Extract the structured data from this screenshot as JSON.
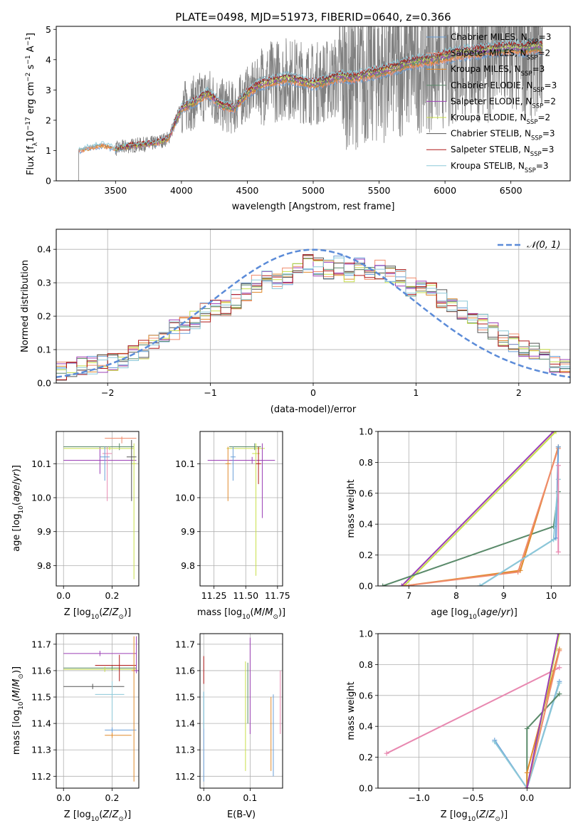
{
  "figure_title": "PLATE=0498, MJD=51973, FIBERID=0640, z=0.366",
  "colors": {
    "chabrier_miles": "#6a9fd8",
    "salpeter_miles": "#ef8b6c",
    "kroupa_miles": "#e08a2c",
    "chabrier_elodie": "#5a8a6a",
    "salpeter_elodie": "#9b3fb5",
    "kroupa_elodie": "#c8df4a",
    "chabrier_stelib": "#555555",
    "salpeter_stelib": "#b01818",
    "kroupa_stelib": "#8cc8d8",
    "observed": "#808080",
    "pink_extra": "#e888b0",
    "gaussian": "#5b8bd8",
    "grid": "#b0b0b0"
  },
  "legend_spectrum": [
    {
      "base": "Chabrier MILES, N",
      "sub": "SSP",
      "tail": "=3",
      "color": "#6a9fd8"
    },
    {
      "base": "Salpeter MILES, N",
      "sub": "SSP",
      "tail": "=2",
      "color": "#ef8b6c"
    },
    {
      "base": "Kroupa MILES, N",
      "sub": "SSP",
      "tail": "=3",
      "color": "#e08a2c"
    },
    {
      "base": "Chabrier ELODIE, N",
      "sub": "SSP",
      "tail": "=3",
      "color": "#5a8a6a"
    },
    {
      "base": "Salpeter ELODIE, N",
      "sub": "SSP",
      "tail": "=2",
      "color": "#9b3fb5"
    },
    {
      "base": "Kroupa ELODIE, N",
      "sub": "SSP",
      "tail": "=2",
      "color": "#c8df4a"
    },
    {
      "base": "Chabrier STELIB, N",
      "sub": "SSP",
      "tail": "=3",
      "color": "#555555"
    },
    {
      "base": "Salpeter STELIB, N",
      "sub": "SSP",
      "tail": "=3",
      "color": "#b01818"
    },
    {
      "base": "Kroupa STELIB, N",
      "sub": "SSP",
      "tail": "=3",
      "color": "#8cc8d8"
    }
  ],
  "legend_residual": {
    "label": "𝒩(0, 1)",
    "color": "#5b8bd8"
  },
  "chart_data": [
    {
      "type": "line",
      "xlabel": "wavelength [Angstrom, rest frame]",
      "ylabel": "Flux [fλ10⁻¹⁷ erg cm⁻² s⁻¹ A⁻¹]",
      "xlim": [
        3050,
        6950
      ],
      "ylim": [
        0,
        5.1
      ],
      "xticks": [
        3500,
        4000,
        4500,
        5000,
        5500,
        6000,
        6500
      ],
      "yticks": [
        0,
        1,
        2,
        3,
        4,
        5
      ],
      "model_continuum": {
        "x": [
          3220,
          3300,
          3400,
          3500,
          3600,
          3700,
          3800,
          3900,
          4000,
          4100,
          4200,
          4300,
          4400,
          4500,
          4600,
          4700,
          4800,
          4900,
          5000,
          5100,
          5200,
          5300,
          5400,
          5500,
          5600,
          5700,
          5800,
          5900,
          6000,
          6100,
          6200,
          6300,
          6400,
          6500,
          6600,
          6700,
          6740
        ],
        "y": [
          1.0,
          1.1,
          1.2,
          1.05,
          1.15,
          1.2,
          1.25,
          1.4,
          2.4,
          2.6,
          2.9,
          2.5,
          2.4,
          2.9,
          3.2,
          3.3,
          3.4,
          3.3,
          3.2,
          3.3,
          3.45,
          3.4,
          3.5,
          3.6,
          3.7,
          3.85,
          3.95,
          4.0,
          4.1,
          4.2,
          4.25,
          4.3,
          4.35,
          4.4,
          4.35,
          4.45,
          4.4
        ]
      },
      "observed_range": [
        3220,
        6740
      ]
    },
    {
      "type": "line",
      "xlabel": "(data-model)/error",
      "ylabel": "Normed distribution",
      "xlim": [
        -2.5,
        2.5
      ],
      "ylim": [
        0,
        0.46
      ],
      "xticks": [
        -2,
        -1,
        0,
        1,
        2
      ],
      "yticks": [
        0.0,
        0.1,
        0.2,
        0.3,
        0.4
      ],
      "histogram_bins": 50,
      "histogram_mean": [
        0.035,
        0.04,
        0.05,
        0.055,
        0.06,
        0.065,
        0.07,
        0.09,
        0.1,
        0.12,
        0.14,
        0.16,
        0.17,
        0.19,
        0.21,
        0.22,
        0.23,
        0.25,
        0.27,
        0.3,
        0.31,
        0.3,
        0.32,
        0.34,
        0.36,
        0.35,
        0.34,
        0.35,
        0.33,
        0.35,
        0.34,
        0.34,
        0.33,
        0.31,
        0.29,
        0.28,
        0.27,
        0.25,
        0.24,
        0.22,
        0.2,
        0.18,
        0.16,
        0.14,
        0.12,
        0.1,
        0.09,
        0.08,
        0.06,
        0.05
      ],
      "gaussian": {
        "mu": 0,
        "sigma": 1
      }
    },
    {
      "type": "scatter",
      "xlabel": "Z [log10(Z/Z⊙)]",
      "ylabel": "age [log10(age/yr)]",
      "xlim": [
        -0.03,
        0.31
      ],
      "ylim": [
        9.74,
        10.195
      ],
      "xticks": [
        0.0,
        0.2
      ],
      "yticks": [
        9.8,
        9.9,
        10.0,
        10.1
      ],
      "points": [
        {
          "x": 0.15,
          "y": 10.11,
          "xerr": [
            0.15,
            0.15
          ],
          "yerr": [
            0.04,
            0.04
          ],
          "color": "#9b3fb5"
        },
        {
          "x": 0.23,
          "y": 10.15,
          "xerr": [
            0.23,
            0.06
          ],
          "yerr": [
            0.01,
            0.01
          ],
          "color": "#5a8a6a"
        },
        {
          "x": 0.19,
          "y": 10.145,
          "xerr": [
            0.19,
            0.1
          ],
          "yerr": [
            0.005,
            0.005
          ],
          "color": "#c8df4a"
        },
        {
          "x": 0.24,
          "y": 10.175,
          "xerr": [
            0.07,
            0.06
          ],
          "yerr": [
            0.015,
            0.005
          ],
          "color": "#ef8b6c"
        },
        {
          "x": 0.29,
          "y": 10.1,
          "xerr": [
            0.01,
            0.01
          ],
          "yerr": [
            0.34,
            0.06
          ],
          "color": "#c8df4a"
        },
        {
          "x": 0.28,
          "y": 10.12,
          "xerr": [
            0.02,
            0.02
          ],
          "yerr": [
            0.13,
            0.05
          ],
          "color": "#555555"
        },
        {
          "x": 0.18,
          "y": 10.13,
          "xerr": [
            0.02,
            0.02
          ],
          "yerr": [
            0.14,
            0.02
          ],
          "color": "#e888b0"
        },
        {
          "x": 0.17,
          "y": 10.12,
          "xerr": [
            0.02,
            0.02
          ],
          "yerr": [
            0.07,
            0.03
          ],
          "color": "#6a9fd8"
        }
      ]
    },
    {
      "type": "scatter",
      "xlabel": "mass [log10(M/M⊙)]",
      "ylabel": "",
      "xlim": [
        11.14,
        11.79
      ],
      "ylim": [
        9.74,
        10.195
      ],
      "xticks": [
        11.25,
        11.5,
        11.75
      ],
      "yticks": [
        9.8,
        9.9,
        10.0,
        10.1
      ],
      "points": [
        {
          "x": 11.55,
          "y": 10.11,
          "xerr": [
            0.35,
            0.18
          ],
          "yerr": [
            0.01,
            0.01
          ],
          "color": "#9b3fb5"
        },
        {
          "x": 11.6,
          "y": 10.145,
          "xerr": [
            0.25,
            0.05
          ],
          "yerr": [
            0.005,
            0.005
          ],
          "color": "#c8df4a"
        },
        {
          "x": 11.57,
          "y": 10.15,
          "xerr": [
            0.2,
            0.05
          ],
          "yerr": [
            0.01,
            0.01
          ],
          "color": "#5a8a6a"
        },
        {
          "x": 11.63,
          "y": 10.11,
          "xerr": [
            0.05,
            0.02
          ],
          "yerr": [
            0.17,
            0.05
          ],
          "color": "#9b3fb5"
        },
        {
          "x": 11.58,
          "y": 10.13,
          "xerr": [
            0.03,
            0.03
          ],
          "yerr": [
            0.36,
            0.03
          ],
          "color": "#c8df4a"
        },
        {
          "x": 11.36,
          "y": 10.1,
          "xerr": [
            0.02,
            0.02
          ],
          "yerr": [
            0.11,
            0.05
          ],
          "color": "#e08a2c"
        },
        {
          "x": 11.4,
          "y": 10.12,
          "xerr": [
            0.02,
            0.02
          ],
          "yerr": [
            0.07,
            0.03
          ],
          "color": "#6a9fd8"
        },
        {
          "x": 11.6,
          "y": 10.1,
          "xerr": [
            0.02,
            0.02
          ],
          "yerr": [
            0.06,
            0.05
          ],
          "color": "#b01818"
        }
      ]
    },
    {
      "type": "line",
      "xlabel": "age [log10(age/yr)]",
      "ylabel": "mass weight",
      "xlim": [
        6.35,
        10.4
      ],
      "ylim": [
        0,
        1.0
      ],
      "xticks": [
        7,
        8,
        9,
        10
      ],
      "yticks": [
        0.0,
        0.2,
        0.4,
        0.6,
        0.8,
        1.0
      ],
      "series": [
        {
          "color": "#9b3fb5",
          "x": [
            6.85,
            10.05
          ],
          "y": [
            0.0,
            1.0
          ]
        },
        {
          "color": "#c8df4a",
          "x": [
            6.9,
            10.1
          ],
          "y": [
            0.0,
            1.0
          ]
        },
        {
          "color": "#5a8a6a",
          "x": [
            6.45,
            10.05,
            10.15
          ],
          "y": [
            0.0,
            0.385,
            0.61
          ]
        },
        {
          "color": "#e08a2c",
          "x": [
            6.9,
            9.35,
            10.15
          ],
          "y": [
            0.0,
            0.1,
            0.9
          ]
        },
        {
          "color": "#ef8b6c",
          "x": [
            6.9,
            9.3,
            10.15
          ],
          "y": [
            0.0,
            0.09,
            0.89
          ]
        },
        {
          "color": "#6a9fd8",
          "x": [
            8.5,
            10.1,
            10.15
          ],
          "y": [
            0.0,
            0.31,
            0.9
          ]
        },
        {
          "color": "#8cc8d8",
          "x": [
            8.5,
            10.05,
            10.15
          ],
          "y": [
            0.0,
            0.3,
            0.69
          ]
        },
        {
          "color": "#e888b0",
          "x": [
            10.15,
            10.15
          ],
          "y": [
            0.22,
            0.78
          ]
        }
      ]
    },
    {
      "type": "scatter",
      "xlabel": "Z [log10(Z/Z⊙)]",
      "ylabel": "mass [log10(M/M⊙)]",
      "xlim": [
        -0.03,
        0.31
      ],
      "ylim": [
        11.155,
        11.74
      ],
      "xticks": [
        0.0,
        0.2
      ],
      "yticks": [
        11.2,
        11.3,
        11.4,
        11.5,
        11.6,
        11.7
      ],
      "points": [
        {
          "x": 0.15,
          "y": 11.665,
          "xerr": [
            0.15,
            0.15
          ],
          "yerr": [
            0.01,
            0.01
          ],
          "color": "#9b3fb5"
        },
        {
          "x": 0.2,
          "y": 11.61,
          "xerr": [
            0.2,
            0.1
          ],
          "yerr": [
            0.01,
            0.01
          ],
          "color": "#5a8a6a"
        },
        {
          "x": 0.17,
          "y": 11.605,
          "xerr": [
            0.17,
            0.13
          ],
          "yerr": [
            0.01,
            0.01
          ],
          "color": "#c8df4a"
        },
        {
          "x": 0.23,
          "y": 11.62,
          "xerr": [
            0.1,
            0.07
          ],
          "yerr": [
            0.06,
            0.04
          ],
          "color": "#b01818"
        },
        {
          "x": 0.12,
          "y": 11.54,
          "xerr": [
            0.12,
            0.13
          ],
          "yerr": [
            0.01,
            0.01
          ],
          "color": "#555555"
        },
        {
          "x": 0.2,
          "y": 11.51,
          "xerr": [
            0.07,
            0.05
          ],
          "yerr": [
            0.1,
            0.05
          ],
          "color": "#8cc8d8"
        },
        {
          "x": 0.2,
          "y": 11.375,
          "xerr": [
            0.03,
            0.1
          ],
          "yerr": [
            0.01,
            0.01
          ],
          "color": "#6a9fd8"
        },
        {
          "x": 0.2,
          "y": 11.355,
          "xerr": [
            0.03,
            0.08
          ],
          "yerr": [
            0.01,
            0.01
          ],
          "color": "#e08a2c"
        },
        {
          "x": 0.29,
          "y": 11.6,
          "xerr": [
            0.01,
            0.01
          ],
          "yerr": [
            0.42,
            0.13
          ],
          "color": "#e08a2c"
        },
        {
          "x": 0.3,
          "y": 11.6,
          "xerr": [
            0.01,
            0.01
          ],
          "yerr": [
            0.01,
            0.13
          ],
          "color": "#9b3fb5"
        }
      ]
    },
    {
      "type": "scatter",
      "xlabel": "E(B-V)",
      "ylabel": "",
      "xlim": [
        -0.008,
        0.17
      ],
      "ylim": [
        11.155,
        11.74
      ],
      "xticks": [
        0.0,
        0.1
      ],
      "yticks": [
        11.2,
        11.3,
        11.4,
        11.5,
        11.6,
        11.7
      ],
      "vlines": [
        {
          "x": 0.0,
          "ymin": 11.55,
          "ymax": 11.655,
          "color": "#b01818"
        },
        {
          "x": 0.0,
          "ymin": 11.18,
          "ymax": 11.52,
          "color": "#6a9fd8"
        },
        {
          "x": 0.0,
          "ymin": 11.38,
          "ymax": 11.52,
          "color": "#8cc8d8"
        },
        {
          "x": 0.09,
          "ymin": 11.22,
          "ymax": 11.635,
          "color": "#c8df4a"
        },
        {
          "x": 0.095,
          "ymin": 11.4,
          "ymax": 11.63,
          "color": "#5a8a6a"
        },
        {
          "x": 0.1,
          "ymin": 11.36,
          "ymax": 11.725,
          "color": "#9b3fb5"
        },
        {
          "x": 0.145,
          "ymin": 11.22,
          "ymax": 11.5,
          "color": "#e08a2c"
        },
        {
          "x": 0.15,
          "ymin": 11.2,
          "ymax": 11.51,
          "color": "#6a9fd8"
        },
        {
          "x": 0.165,
          "ymin": 11.36,
          "ymax": 11.6,
          "color": "#e888b0"
        }
      ]
    },
    {
      "type": "line",
      "xlabel": "Z [log10(Z/Z⊙)]",
      "ylabel": "mass weight",
      "xlim": [
        -1.38,
        0.4
      ],
      "ylim": [
        0,
        1.0
      ],
      "xticks": [
        -1.0,
        -0.5,
        0.0
      ],
      "yticks": [
        0.0,
        0.2,
        0.4,
        0.6,
        0.8,
        1.0
      ],
      "series": [
        {
          "color": "#e888b0",
          "x": [
            -1.3,
            0.3
          ],
          "y": [
            0.225,
            0.78
          ]
        },
        {
          "color": "#6a9fd8",
          "x": [
            -0.3,
            0.0,
            0.3
          ],
          "y": [
            0.31,
            0.0,
            0.69
          ]
        },
        {
          "color": "#8cc8d8",
          "x": [
            -0.3,
            0.0,
            0.3
          ],
          "y": [
            0.3,
            0.0,
            0.68
          ]
        },
        {
          "color": "#5a8a6a",
          "x": [
            0.0,
            0.0,
            0.3
          ],
          "y": [
            0.0,
            0.385,
            0.61
          ]
        },
        {
          "color": "#e08a2c",
          "x": [
            0.0,
            0.0,
            0.3
          ],
          "y": [
            0.0,
            0.1,
            0.9
          ]
        },
        {
          "color": "#ef8b6c",
          "x": [
            0.0,
            0.3
          ],
          "y": [
            0.0,
            0.89
          ]
        },
        {
          "color": "#c8df4a",
          "x": [
            0.0,
            0.3
          ],
          "y": [
            0.0,
            1.0
          ]
        },
        {
          "color": "#9b3fb5",
          "x": [
            0.0,
            0.29
          ],
          "y": [
            0.0,
            1.0
          ]
        }
      ]
    }
  ]
}
